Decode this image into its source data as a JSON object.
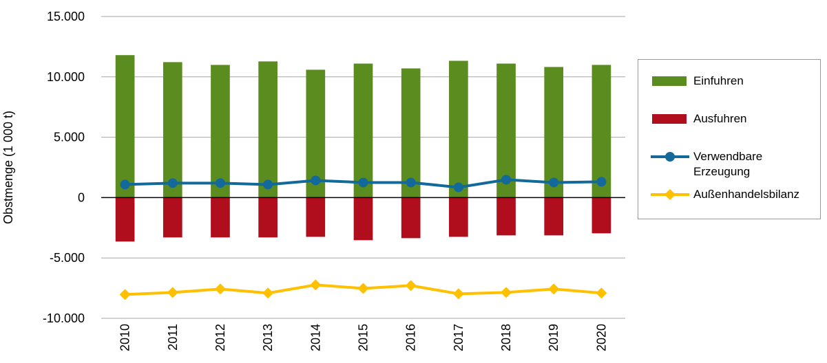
{
  "chart_data": {
    "type": "bar",
    "y_label": "Obstmenge (1 000 t)",
    "categories": [
      "2010",
      "2011",
      "2012",
      "2013",
      "2014",
      "2015",
      "2016",
      "2017",
      "2018",
      "2019",
      "2020"
    ],
    "series": [
      {
        "name": "Einfuhren",
        "type": "bar",
        "color": "#5b8c1f",
        "values": [
          11800,
          11220,
          10990,
          11280,
          10590,
          11100,
          10700,
          11330,
          11100,
          10820,
          10990
        ]
      },
      {
        "name": "Ausfuhren",
        "type": "bar",
        "color": "#b00d1d",
        "values": [
          -3640,
          -3300,
          -3300,
          -3300,
          -3250,
          -3530,
          -3360,
          -3250,
          -3130,
          -3130,
          -2960
        ]
      },
      {
        "name": "Verwendbare Erzeugung",
        "type": "line",
        "marker": "circle",
        "color": "#12699a",
        "values": [
          1080,
          1200,
          1200,
          1080,
          1420,
          1250,
          1250,
          850,
          1480,
          1250,
          1310
        ]
      },
      {
        "name": "Außenhandelsbilanz",
        "type": "line",
        "marker": "diamond",
        "color": "#ffc000",
        "values": [
          -8030,
          -7860,
          -7570,
          -7910,
          -7230,
          -7520,
          -7290,
          -7970,
          -7860,
          -7570,
          -7910
        ]
      }
    ],
    "ylim": [
      -10000,
      15000
    ],
    "yticks": [
      {
        "value": -10000,
        "label": "-10.000"
      },
      {
        "value": -5000,
        "label": "-5.000"
      },
      0,
      {
        "value": 5000,
        "label": "5.000"
      },
      {
        "value": 10000,
        "label": "10.000"
      },
      {
        "value": 15000,
        "label": "15.000"
      }
    ],
    "grid": true,
    "legend": "right"
  }
}
